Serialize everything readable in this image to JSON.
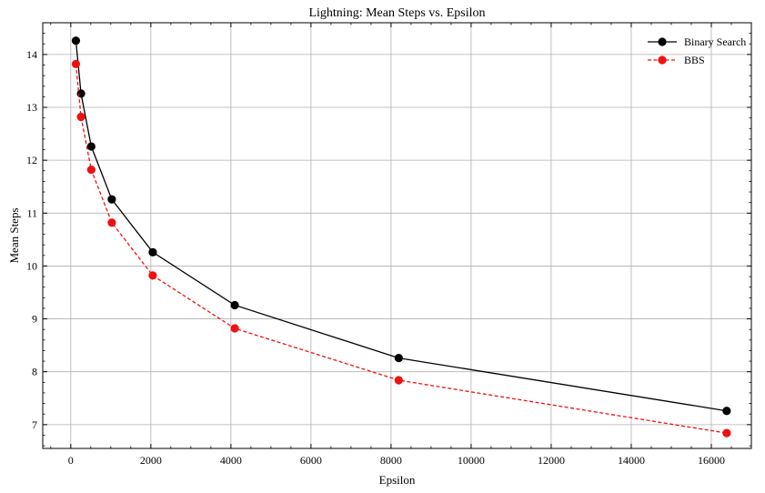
{
  "chart_data": {
    "type": "line",
    "title": "Lightning: Mean Steps vs. Epsilon",
    "xlabel": "Epsilon",
    "ylabel": "Mean Steps",
    "xlim": [
      -700,
      17000
    ],
    "ylim": [
      6.55,
      14.6
    ],
    "xticks": [
      0,
      2000,
      4000,
      6000,
      8000,
      10000,
      12000,
      14000,
      16000
    ],
    "yticks": [
      7,
      8,
      9,
      10,
      11,
      12,
      13,
      14
    ],
    "grid": true,
    "legend_position": "top-right",
    "series": [
      {
        "name": "Binary Search",
        "color": "#000000",
        "line_style": "solid",
        "marker": "circle",
        "x": [
          128,
          256,
          512,
          1024,
          2048,
          4096,
          8192,
          16384
        ],
        "y": [
          14.26,
          13.26,
          12.26,
          11.26,
          10.26,
          9.26,
          8.26,
          7.26
        ]
      },
      {
        "name": "BBS",
        "color": "#ee1111",
        "line_style": "dashed",
        "marker": "circle",
        "x": [
          128,
          256,
          512,
          1024,
          2048,
          4096,
          8192,
          16384
        ],
        "y": [
          13.82,
          12.82,
          11.82,
          10.82,
          9.82,
          8.82,
          7.84,
          6.84
        ]
      }
    ]
  }
}
